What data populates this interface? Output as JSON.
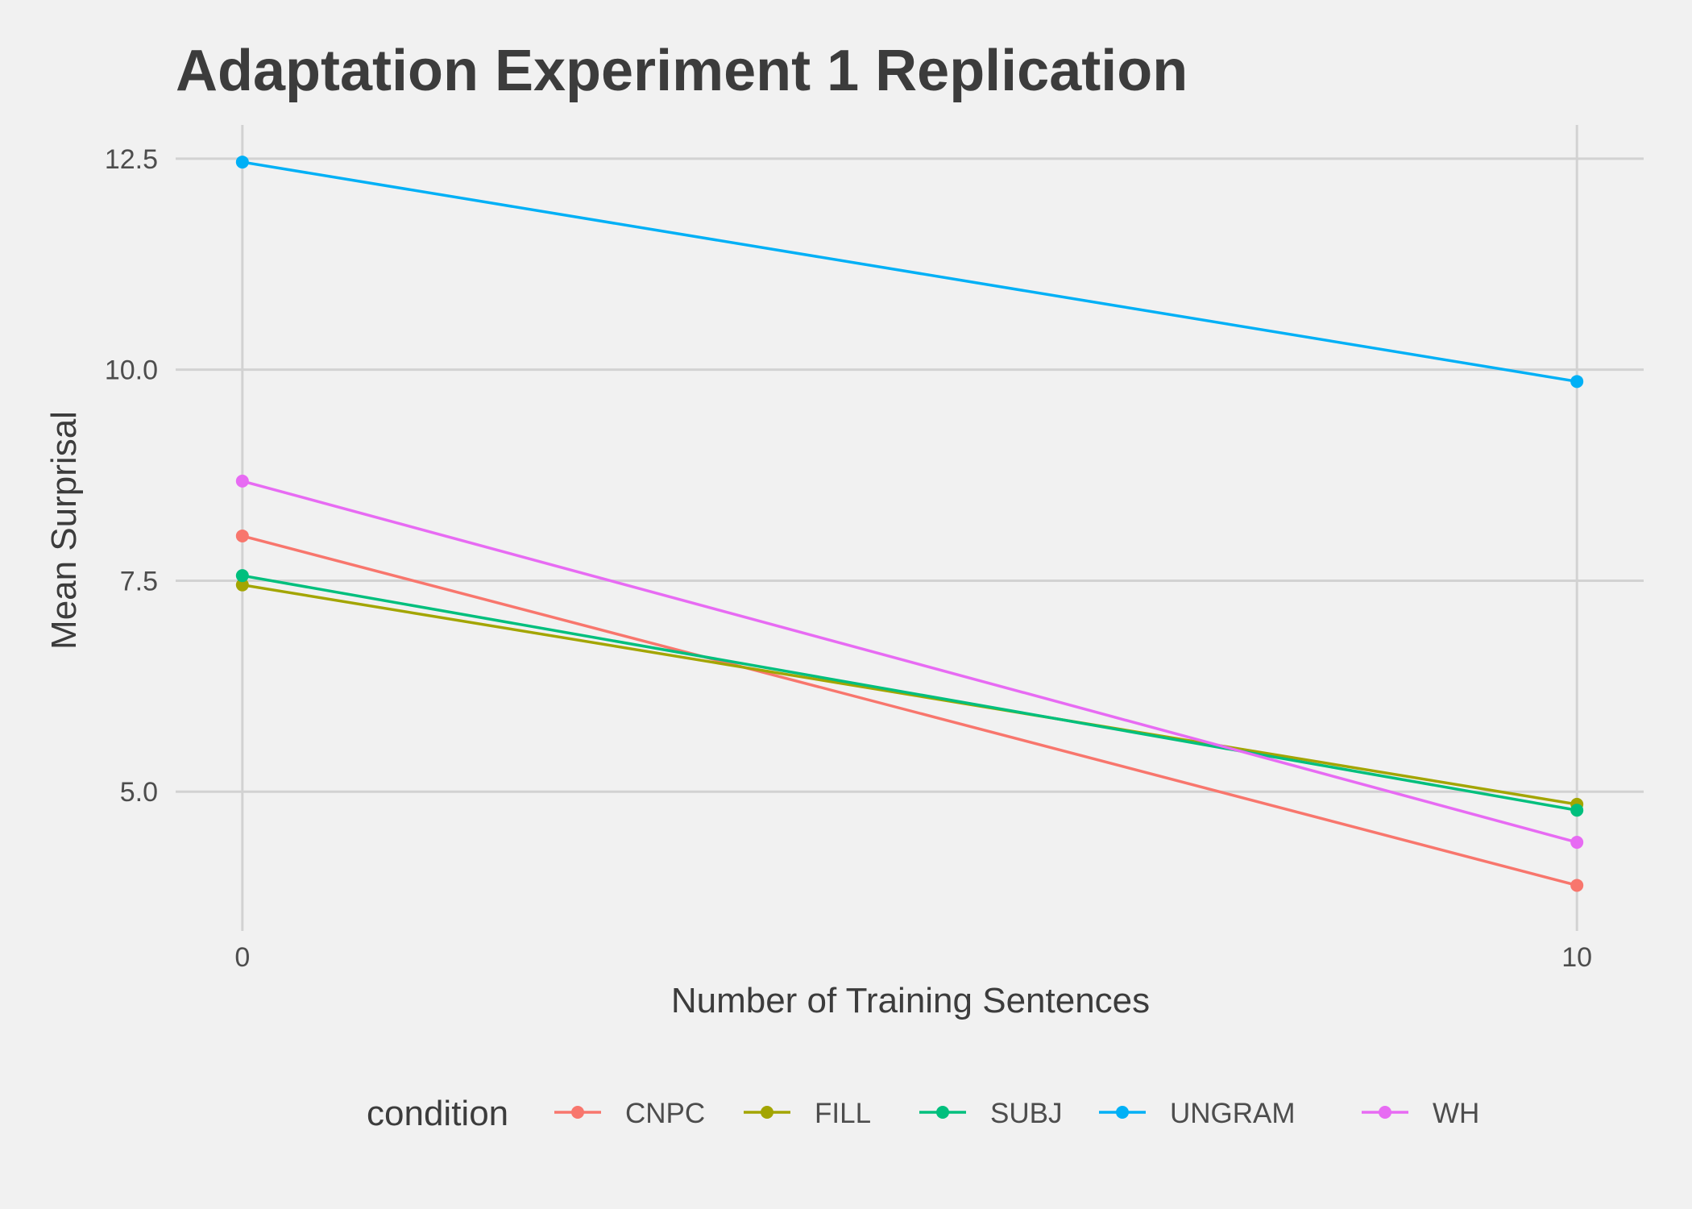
{
  "chart_data": {
    "type": "line",
    "title": "Adaptation Experiment 1 Replication",
    "xlabel": "Number of Training Sentences",
    "ylabel": "Mean Surprisal",
    "x": [
      0,
      10
    ],
    "x_ticks": [
      "0",
      "10"
    ],
    "y_ticks": [
      "5.0",
      "7.5",
      "10.0",
      "12.5"
    ],
    "y_tick_values": [
      5.0,
      7.5,
      10.0,
      12.5
    ],
    "xlim": [
      -0.5,
      10.5
    ],
    "ylim": [
      3.35,
      12.9
    ],
    "grid": true,
    "legend_title": "condition",
    "legend_position": "bottom",
    "series": [
      {
        "name": "CNPC",
        "color": "#F8766D",
        "values": [
          8.03,
          3.89
        ]
      },
      {
        "name": "FILL",
        "color": "#A3A500",
        "values": [
          7.45,
          4.85
        ]
      },
      {
        "name": "SUBJ",
        "color": "#00BF7D",
        "values": [
          7.56,
          4.78
        ]
      },
      {
        "name": "UNGRAM",
        "color": "#00B0F6",
        "values": [
          12.46,
          9.86
        ]
      },
      {
        "name": "WH",
        "color": "#E76BF3",
        "values": [
          8.68,
          4.4
        ]
      }
    ]
  }
}
